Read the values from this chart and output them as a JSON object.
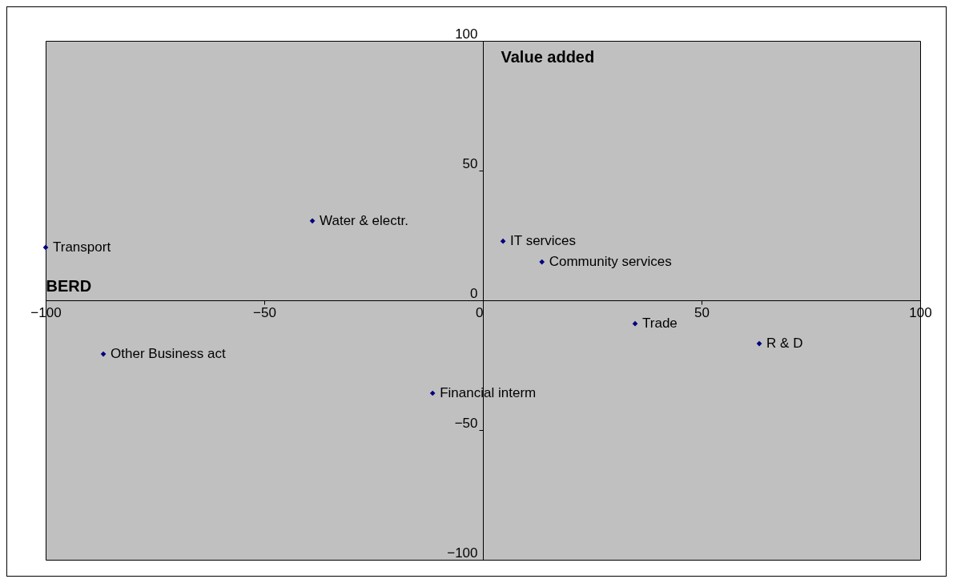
{
  "chart_data": {
    "type": "scatter",
    "xlabel": "BERD",
    "ylabel": "Value added",
    "x": [
      -100,
      -39,
      4.6,
      13.5,
      34.8,
      63.2,
      -86.8,
      -11.5
    ],
    "series": [
      {
        "color": "#000080",
        "values": [
          20.4,
          30.6,
          22.8,
          14.8,
          -9,
          -16.7,
          -20.7,
          -35.8
        ]
      }
    ],
    "xlim": [
      -100,
      100
    ],
    "ylim": [
      -100,
      100
    ],
    "xticks": [
      -100,
      -50,
      0,
      50,
      100
    ],
    "yticks": [
      -100,
      -50,
      0,
      50,
      100
    ],
    "marker": "diamond",
    "grid": false,
    "annotations": [
      {
        "text": "Transport",
        "x": -100,
        "y": 20.4
      },
      {
        "text": "Water & electr.",
        "x": -39,
        "y": 30.6
      },
      {
        "text": "IT services",
        "x": 4.6,
        "y": 22.8
      },
      {
        "text": "Community services",
        "x": 13.5,
        "y": 14.8
      },
      {
        "text": "Trade",
        "x": 34.8,
        "y": -9
      },
      {
        "text": "R & D",
        "x": 63.2,
        "y": -16.7
      },
      {
        "text": "Other Business act",
        "x": -86.8,
        "y": -20.7
      },
      {
        "text": "Financial interm",
        "x": -11.5,
        "y": -35.8
      }
    ]
  }
}
